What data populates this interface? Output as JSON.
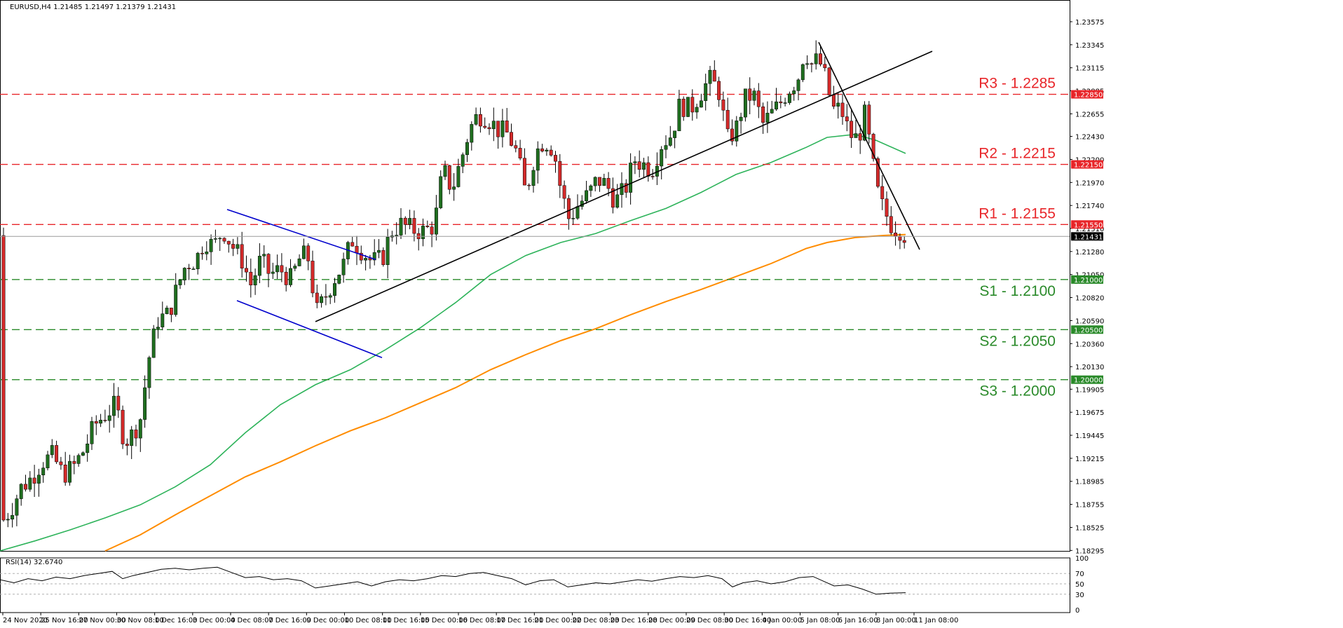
{
  "chart_data": {
    "type": "candlestick",
    "symbol_header": "EURUSD,H4  1.21485 1.21497 1.21379 1.21431",
    "last_price": 1.21431,
    "ylim": [
      1.1829,
      1.2368
    ],
    "price_ticks": [
      "1.23575",
      "1.23345",
      "1.23115",
      "1.22885",
      "1.22655",
      "1.22430",
      "1.22200",
      "1.21970",
      "1.21740",
      "1.21510",
      "1.21280",
      "1.21050",
      "1.20820",
      "1.20590",
      "1.20360",
      "1.20130",
      "1.19905",
      "1.19675",
      "1.19445",
      "1.19215",
      "1.18985",
      "1.18755",
      "1.18525",
      "1.18295"
    ],
    "time_labels": [
      "24 Nov 2020",
      "25 Nov 16:00",
      "27 Nov 00:00",
      "30 Nov 08:00",
      "1 Dec 16:00",
      "3 Dec 00:00",
      "4 Dec 08:00",
      "7 Dec 16:00",
      "9 Dec 00:00",
      "10 Dec 08:00",
      "11 Dec 16:00",
      "15 Dec 00:00",
      "16 Dec 08:00",
      "17 Dec 16:00",
      "21 Dec 00:00",
      "22 Dec 08:00",
      "23 Dec 16:00",
      "28 Dec 00:00",
      "29 Dec 08:00",
      "30 Dec 16:00",
      "4 Jan 00:00",
      "5 Jan 08:00",
      "6 Jan 16:00",
      "8 Jan 00:00",
      "11 Jan 08:00"
    ],
    "levels": [
      {
        "label": "R3 - 1.2285",
        "price": 1.2285,
        "tag": "1.22850",
        "type": "resistance"
      },
      {
        "label": "R2 - 1.2215",
        "price": 1.2215,
        "tag": "1.22150",
        "type": "resistance"
      },
      {
        "label": "R1 - 1.2155",
        "price": 1.2155,
        "tag": "1.21550",
        "type": "resistance"
      },
      {
        "label": "S1 - 1.2100",
        "price": 1.21,
        "tag": "1.21000",
        "type": "support"
      },
      {
        "label": "S2 - 1.2050",
        "price": 1.205,
        "tag": "1.20500",
        "type": "support"
      },
      {
        "label": "S3 - 1.2000",
        "price": 1.2,
        "tag": "1.20000",
        "type": "support"
      }
    ],
    "ma_fast": [
      [
        0,
        1.1829
      ],
      [
        50,
        1.1839
      ],
      [
        100,
        1.185
      ],
      [
        150,
        1.1862
      ],
      [
        200,
        1.1875
      ],
      [
        250,
        1.1893
      ],
      [
        300,
        1.1915
      ],
      [
        350,
        1.1947
      ],
      [
        400,
        1.1975
      ],
      [
        450,
        1.1995
      ],
      [
        500,
        1.201
      ],
      [
        550,
        1.203
      ],
      [
        600,
        1.2052
      ],
      [
        650,
        1.2077
      ],
      [
        700,
        1.2105
      ],
      [
        750,
        1.2124
      ],
      [
        800,
        1.2137
      ],
      [
        850,
        1.2146
      ],
      [
        900,
        1.2159
      ],
      [
        950,
        1.2171
      ],
      [
        1000,
        1.2187
      ],
      [
        1050,
        1.2205
      ],
      [
        1100,
        1.2217
      ],
      [
        1150,
        1.2232
      ],
      [
        1180,
        1.2242
      ],
      [
        1220,
        1.2245
      ],
      [
        1250,
        1.2239
      ],
      [
        1292,
        1.2226
      ]
    ],
    "ma_slow": [
      [
        150,
        1.1829
      ],
      [
        200,
        1.1845
      ],
      [
        250,
        1.1865
      ],
      [
        300,
        1.1884
      ],
      [
        350,
        1.1903
      ],
      [
        400,
        1.1918
      ],
      [
        450,
        1.1934
      ],
      [
        500,
        1.1949
      ],
      [
        550,
        1.1962
      ],
      [
        600,
        1.1977
      ],
      [
        650,
        1.1992
      ],
      [
        700,
        1.201
      ],
      [
        750,
        1.2025
      ],
      [
        800,
        1.2039
      ],
      [
        850,
        1.2051
      ],
      [
        900,
        1.2065
      ],
      [
        950,
        1.2078
      ],
      [
        1000,
        1.209
      ],
      [
        1050,
        1.2103
      ],
      [
        1100,
        1.2116
      ],
      [
        1150,
        1.2131
      ],
      [
        1180,
        1.2137
      ],
      [
        1220,
        1.2142
      ],
      [
        1260,
        1.2144
      ],
      [
        1292,
        1.2145
      ]
    ],
    "trendlines": [
      {
        "name": "channel-upper",
        "color": "#0000cc",
        "points": [
          [
            324,
            1.217
          ],
          [
            536,
            1.212
          ]
        ]
      },
      {
        "name": "channel-lower",
        "color": "#0000cc",
        "points": [
          [
            338,
            1.2079
          ],
          [
            545,
            1.2022
          ]
        ]
      },
      {
        "name": "uptrend",
        "color": "#000000",
        "points": [
          [
            450,
            1.2058
          ],
          [
            1330,
            1.2328
          ]
        ]
      },
      {
        "name": "downtrend",
        "color": "#000000",
        "points": [
          [
            1168,
            1.2337
          ],
          [
            1312,
            1.213
          ]
        ]
      }
    ],
    "candle_anchors": [
      [
        5,
        1.186
      ],
      [
        15,
        1.187
      ],
      [
        30,
        1.1892
      ],
      [
        45,
        1.1902
      ],
      [
        60,
        1.1918
      ],
      [
        75,
        1.1924
      ],
      [
        90,
        1.1905
      ],
      [
        105,
        1.1913
      ],
      [
        120,
        1.193
      ],
      [
        135,
        1.1955
      ],
      [
        150,
        1.1965
      ],
      [
        165,
        1.1975
      ],
      [
        178,
        1.1938
      ],
      [
        188,
        1.1945
      ],
      [
        200,
        1.196
      ],
      [
        212,
        1.202
      ],
      [
        225,
        1.206
      ],
      [
        240,
        1.2065
      ],
      [
        252,
        1.209
      ],
      [
        265,
        1.2115
      ],
      [
        280,
        1.212
      ],
      [
        292,
        1.214
      ],
      [
        305,
        1.2133
      ],
      [
        318,
        1.215
      ],
      [
        330,
        1.2135
      ],
      [
        345,
        1.212
      ],
      [
        358,
        1.2095
      ],
      [
        372,
        1.212
      ],
      [
        385,
        1.2105
      ],
      [
        400,
        1.211
      ],
      [
        415,
        1.21
      ],
      [
        430,
        1.2125
      ],
      [
        442,
        1.212
      ],
      [
        450,
        1.2065
      ],
      [
        462,
        1.208
      ],
      [
        476,
        1.21
      ],
      [
        490,
        1.2115
      ],
      [
        502,
        1.214
      ],
      [
        515,
        1.213
      ],
      [
        530,
        1.2118
      ],
      [
        545,
        1.212
      ],
      [
        558,
        1.2148
      ],
      [
        572,
        1.2155
      ],
      [
        588,
        1.215
      ],
      [
        605,
        1.2148
      ],
      [
        620,
        1.2155
      ],
      [
        632,
        1.221
      ],
      [
        645,
        1.219
      ],
      [
        658,
        1.222
      ],
      [
        670,
        1.225
      ],
      [
        682,
        1.2265
      ],
      [
        695,
        1.2262
      ],
      [
        710,
        1.225
      ],
      [
        725,
        1.2245
      ],
      [
        738,
        1.2225
      ],
      [
        750,
        1.2185
      ],
      [
        763,
        1.2225
      ],
      [
        776,
        1.224
      ],
      [
        790,
        1.223
      ],
      [
        800,
        1.219
      ],
      [
        812,
        1.216
      ],
      [
        825,
        1.2175
      ],
      [
        840,
        1.2185
      ],
      [
        852,
        1.22
      ],
      [
        865,
        1.2195
      ],
      [
        878,
        1.2178
      ],
      [
        892,
        1.219
      ],
      [
        905,
        1.222
      ],
      [
        918,
        1.2215
      ],
      [
        930,
        1.221
      ],
      [
        943,
        1.2235
      ],
      [
        958,
        1.2245
      ],
      [
        970,
        1.2275
      ],
      [
        985,
        1.227
      ],
      [
        998,
        1.2285
      ],
      [
        1012,
        1.23
      ],
      [
        1025,
        1.229
      ],
      [
        1038,
        1.224
      ],
      [
        1050,
        1.225
      ],
      [
        1062,
        1.228
      ],
      [
        1075,
        1.2285
      ],
      [
        1088,
        1.2255
      ],
      [
        1100,
        1.2265
      ],
      [
        1112,
        1.2275
      ],
      [
        1125,
        1.229
      ],
      [
        1138,
        1.23
      ],
      [
        1148,
        1.233
      ],
      [
        1158,
        1.2315
      ],
      [
        1168,
        1.232
      ],
      [
        1178,
        1.23
      ],
      [
        1188,
        1.227
      ],
      [
        1200,
        1.227
      ],
      [
        1212,
        1.2245
      ],
      [
        1224,
        1.224
      ],
      [
        1234,
        1.2265
      ],
      [
        1244,
        1.222
      ],
      [
        1254,
        1.218
      ],
      [
        1264,
        1.2165
      ],
      [
        1274,
        1.2152
      ],
      [
        1284,
        1.215
      ],
      [
        1292,
        1.2144
      ]
    ],
    "rsi": {
      "label": "RSI(14) 32.6740",
      "ylim": [
        0,
        100
      ],
      "ticks": [
        "100",
        "70",
        "50",
        "30",
        "0"
      ],
      "levels": [
        70,
        50,
        30
      ],
      "series": [
        [
          0,
          58
        ],
        [
          20,
          52
        ],
        [
          40,
          60
        ],
        [
          60,
          56
        ],
        [
          80,
          63
        ],
        [
          100,
          60
        ],
        [
          120,
          66
        ],
        [
          140,
          70
        ],
        [
          160,
          74
        ],
        [
          175,
          60
        ],
        [
          190,
          66
        ],
        [
          210,
          72
        ],
        [
          230,
          78
        ],
        [
          250,
          80
        ],
        [
          270,
          77
        ],
        [
          290,
          80
        ],
        [
          310,
          82
        ],
        [
          330,
          72
        ],
        [
          350,
          62
        ],
        [
          370,
          64
        ],
        [
          390,
          58
        ],
        [
          410,
          60
        ],
        [
          430,
          56
        ],
        [
          450,
          42
        ],
        [
          470,
          46
        ],
        [
          490,
          50
        ],
        [
          510,
          54
        ],
        [
          530,
          46
        ],
        [
          550,
          54
        ],
        [
          570,
          58
        ],
        [
          590,
          56
        ],
        [
          610,
          60
        ],
        [
          630,
          66
        ],
        [
          650,
          64
        ],
        [
          670,
          70
        ],
        [
          690,
          72
        ],
        [
          710,
          66
        ],
        [
          730,
          60
        ],
        [
          750,
          48
        ],
        [
          770,
          56
        ],
        [
          790,
          58
        ],
        [
          810,
          44
        ],
        [
          830,
          48
        ],
        [
          850,
          52
        ],
        [
          870,
          50
        ],
        [
          890,
          54
        ],
        [
          910,
          58
        ],
        [
          930,
          55
        ],
        [
          950,
          60
        ],
        [
          970,
          64
        ],
        [
          990,
          62
        ],
        [
          1010,
          66
        ],
        [
          1030,
          60
        ],
        [
          1045,
          44
        ],
        [
          1060,
          52
        ],
        [
          1080,
          56
        ],
        [
          1100,
          50
        ],
        [
          1120,
          54
        ],
        [
          1140,
          62
        ],
        [
          1160,
          64
        ],
        [
          1175,
          55
        ],
        [
          1190,
          46
        ],
        [
          1210,
          48
        ],
        [
          1230,
          40
        ],
        [
          1250,
          30
        ],
        [
          1270,
          32
        ],
        [
          1292,
          33
        ]
      ]
    }
  }
}
